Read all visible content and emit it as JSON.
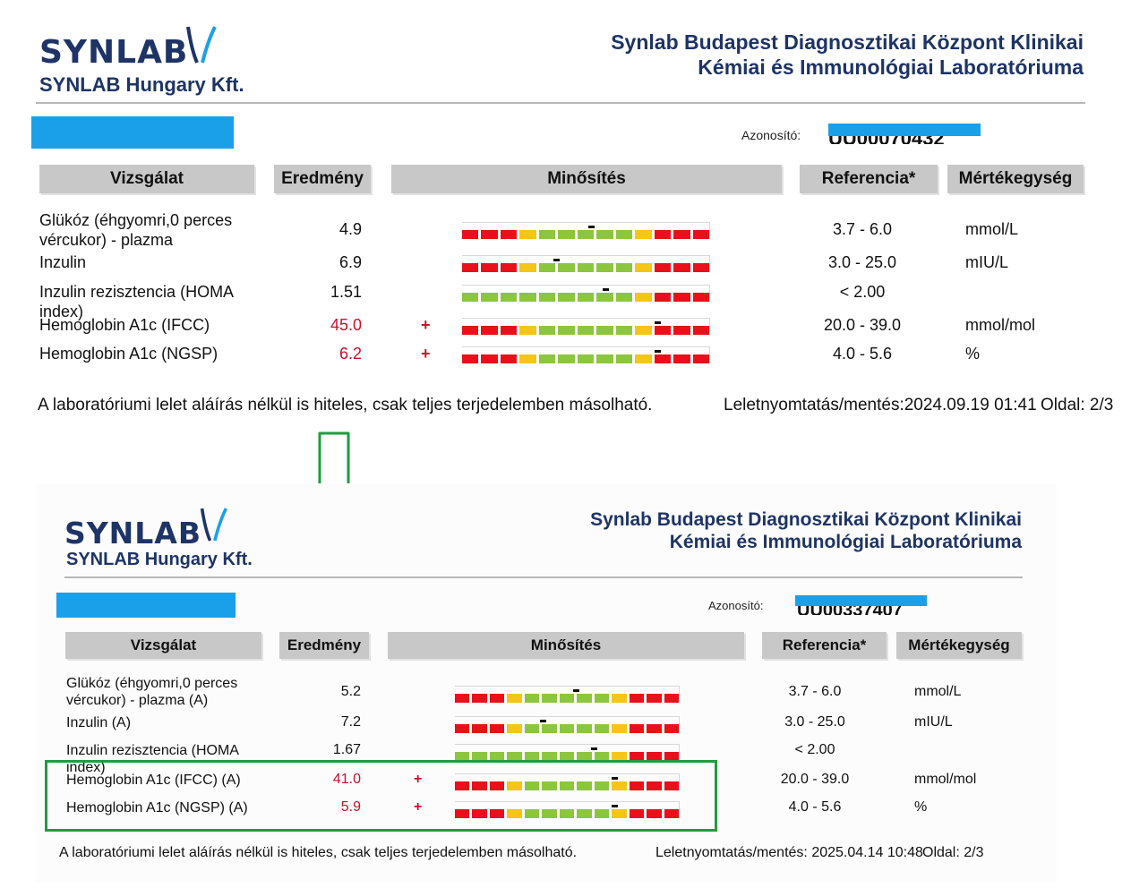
{
  "colors": {
    "red": "#e8101a",
    "yellow": "#f5c518",
    "green": "#8cc63f",
    "arrow": "#1e9e3e",
    "redact": "#1aa0e8"
  },
  "reports": [
    {
      "logo_word": "SYNLAB",
      "logo_sub": "SYNLAB Hungary Kft.",
      "lab_line1": "Synlab Budapest Diagnosztikai Központ Klinikai",
      "lab_line2": "Kémiai és Immunológiai Laboratóriuma",
      "id_label": "Azonosító:",
      "id_value": "UU00070432",
      "headers": [
        "Vizsgálat",
        "Eredmény",
        "Minősítés",
        "Referencia*",
        "Mértékegység"
      ],
      "rows": [
        {
          "name": "Glükóz (éhgyomri,0 perces vércukor) - plazma",
          "result": "4.9",
          "flag": "",
          "ref": "3.7 - 6.0",
          "unit": "mmol/L",
          "gauge": "RRRYGGGGGYRRR",
          "marker": 0.52
        },
        {
          "name": "Inzulin",
          "result": "6.9",
          "flag": "",
          "ref": "3.0 - 25.0",
          "unit": "mIU/L",
          "gauge": "RRRYGGGGGYRRR",
          "marker": 0.38
        },
        {
          "name": "Inzulin rezisztencia (HOMA index)",
          "result": "1.51",
          "flag": "",
          "ref": "< 2.00",
          "unit": "",
          "gauge": "GGGGGGGGGYRRR",
          "marker": 0.58
        },
        {
          "name": "Hemoglobin A1c (IFCC)",
          "result": "45.0",
          "flag": "+",
          "ref": "20.0 - 39.0",
          "unit": "mmol/mol",
          "gauge": "RRRYGGGGGYRRR",
          "marker": 0.79
        },
        {
          "name": "Hemoglobin A1c (NGSP)",
          "result": "6.2",
          "flag": "+",
          "ref": "4.0 - 5.6",
          "unit": "%",
          "gauge": "RRRYGGGGGYRRR",
          "marker": 0.79
        }
      ],
      "footer_note": "A laboratóriumi lelet aláírás nélkül is hiteles, csak teljes terjedelemben másolható.",
      "footer_print_label": "Leletnyomtatás/mentés:",
      "footer_print_date": "2024.09.19 01:41",
      "footer_page_label": "Oldal:",
      "footer_page": "2/3"
    },
    {
      "logo_word": "SYNLAB",
      "logo_sub": "SYNLAB Hungary Kft.",
      "lab_line1": "Synlab Budapest Diagnosztikai Központ Klinikai",
      "lab_line2": "Kémiai és Immunológiai Laboratóriuma",
      "id_label": "Azonosító:",
      "id_value": "UU00337407",
      "headers": [
        "Vizsgálat",
        "Eredmény",
        "Minősítés",
        "Referencia*",
        "Mértékegység"
      ],
      "rows": [
        {
          "name": "Glükóz (éhgyomri,0 perces vércukor) - plazma (A)",
          "result": "5.2",
          "flag": "",
          "ref": "3.7 - 6.0",
          "unit": "mmol/L",
          "gauge": "RRRYGGGGGYRRR",
          "marker": 0.54
        },
        {
          "name": "Inzulin (A)",
          "result": "7.2",
          "flag": "",
          "ref": "3.0 - 25.0",
          "unit": "mIU/L",
          "gauge": "RRRYGGGGGYRRR",
          "marker": 0.39
        },
        {
          "name": "Inzulin rezisztencia (HOMA index)",
          "result": "1.67",
          "flag": "",
          "ref": "< 2.00",
          "unit": "",
          "gauge": "GGGGGGGGGYRRR",
          "marker": 0.62
        },
        {
          "name": "Hemoglobin A1c (IFCC) (A)",
          "result": "41.0",
          "flag": "+",
          "ref": "20.0 - 39.0",
          "unit": "mmol/mol",
          "gauge": "RRRYGGGGGYRRR",
          "marker": 0.71
        },
        {
          "name": "Hemoglobin A1c (NGSP) (A)",
          "result": "5.9",
          "flag": "+",
          "ref": "4.0 - 5.6",
          "unit": "%",
          "gauge": "RRRYGGGGGYRRR",
          "marker": 0.71
        }
      ],
      "footer_note": "A laboratóriumi lelet aláírás nélkül is hiteles, csak teljes terjedelemben másolható.",
      "footer_print_label": "Leletnyomtatás/mentés:",
      "footer_print_date": "2025.04.14 10:48",
      "footer_page_label": "Oldal:",
      "footer_page": "2/3"
    }
  ]
}
